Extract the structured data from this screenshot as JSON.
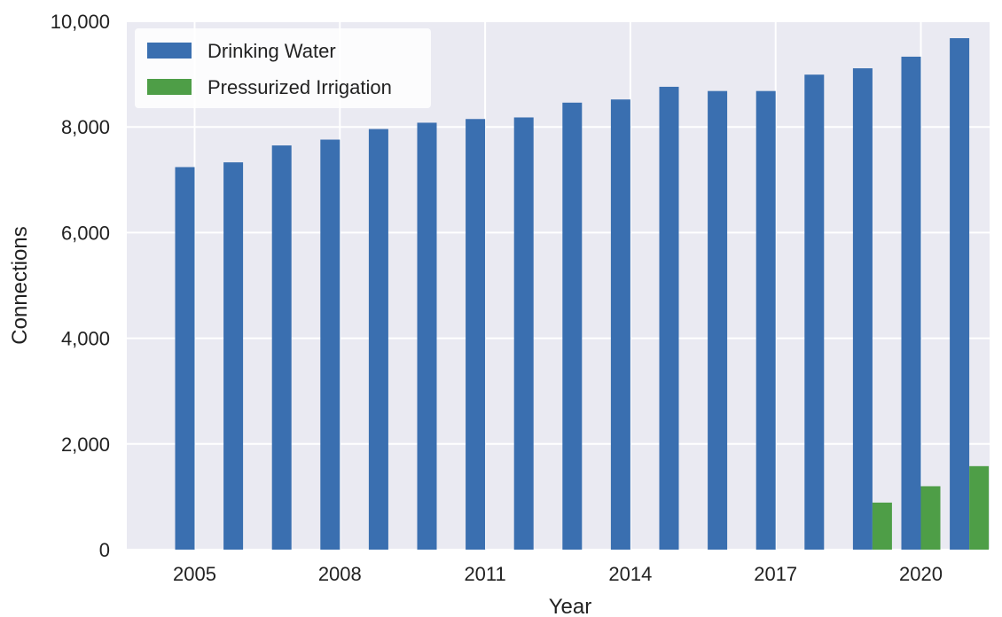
{
  "chart_data": {
    "type": "bar",
    "x": [
      2005,
      2006,
      2007,
      2008,
      2009,
      2010,
      2011,
      2012,
      2013,
      2014,
      2015,
      2016,
      2017,
      2018,
      2019,
      2020,
      2021
    ],
    "x_tick_labels": [
      "2005",
      "2008",
      "2011",
      "2014",
      "2017",
      "2020"
    ],
    "series": [
      {
        "name": "Drinking Water",
        "color": "#3a6fb0",
        "values": [
          7240,
          7330,
          7650,
          7760,
          7960,
          8080,
          8150,
          8180,
          8460,
          8520,
          8760,
          8680,
          8680,
          8990,
          9110,
          9330,
          9680
        ]
      },
      {
        "name": "Pressurized Irrigation",
        "color": "#4e9e47",
        "values": [
          0,
          0,
          0,
          0,
          0,
          0,
          0,
          0,
          0,
          0,
          0,
          0,
          0,
          0,
          890,
          1200,
          1580
        ]
      }
    ],
    "xlabel": "Year",
    "ylabel": "Connections",
    "ylim": [
      0,
      10000
    ],
    "y_ticks": [
      "0",
      "2,000",
      "4,000",
      "6,000",
      "8,000",
      "10,000"
    ],
    "grid": true,
    "legend_position": "top-left",
    "background_color": "#eaeaf2"
  }
}
